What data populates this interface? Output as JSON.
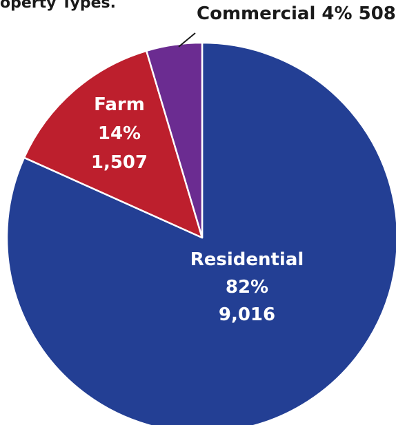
{
  "chart_data": {
    "type": "pie",
    "title": "operty Types.",
    "start_angle_deg": 0,
    "direction": "clockwise",
    "slices": [
      {
        "name": "Residential",
        "percent": "82%",
        "value": 9016,
        "value_label": "9,016",
        "color": "#233f94"
      },
      {
        "name": "Farm",
        "percent": "14%",
        "value": 1507,
        "value_label": "1,507",
        "color": "#bd1f2d"
      },
      {
        "name": "Commercial",
        "percent": "4%",
        "value": 508,
        "value_label": "508",
        "color": "#6b2c91"
      }
    ]
  }
}
